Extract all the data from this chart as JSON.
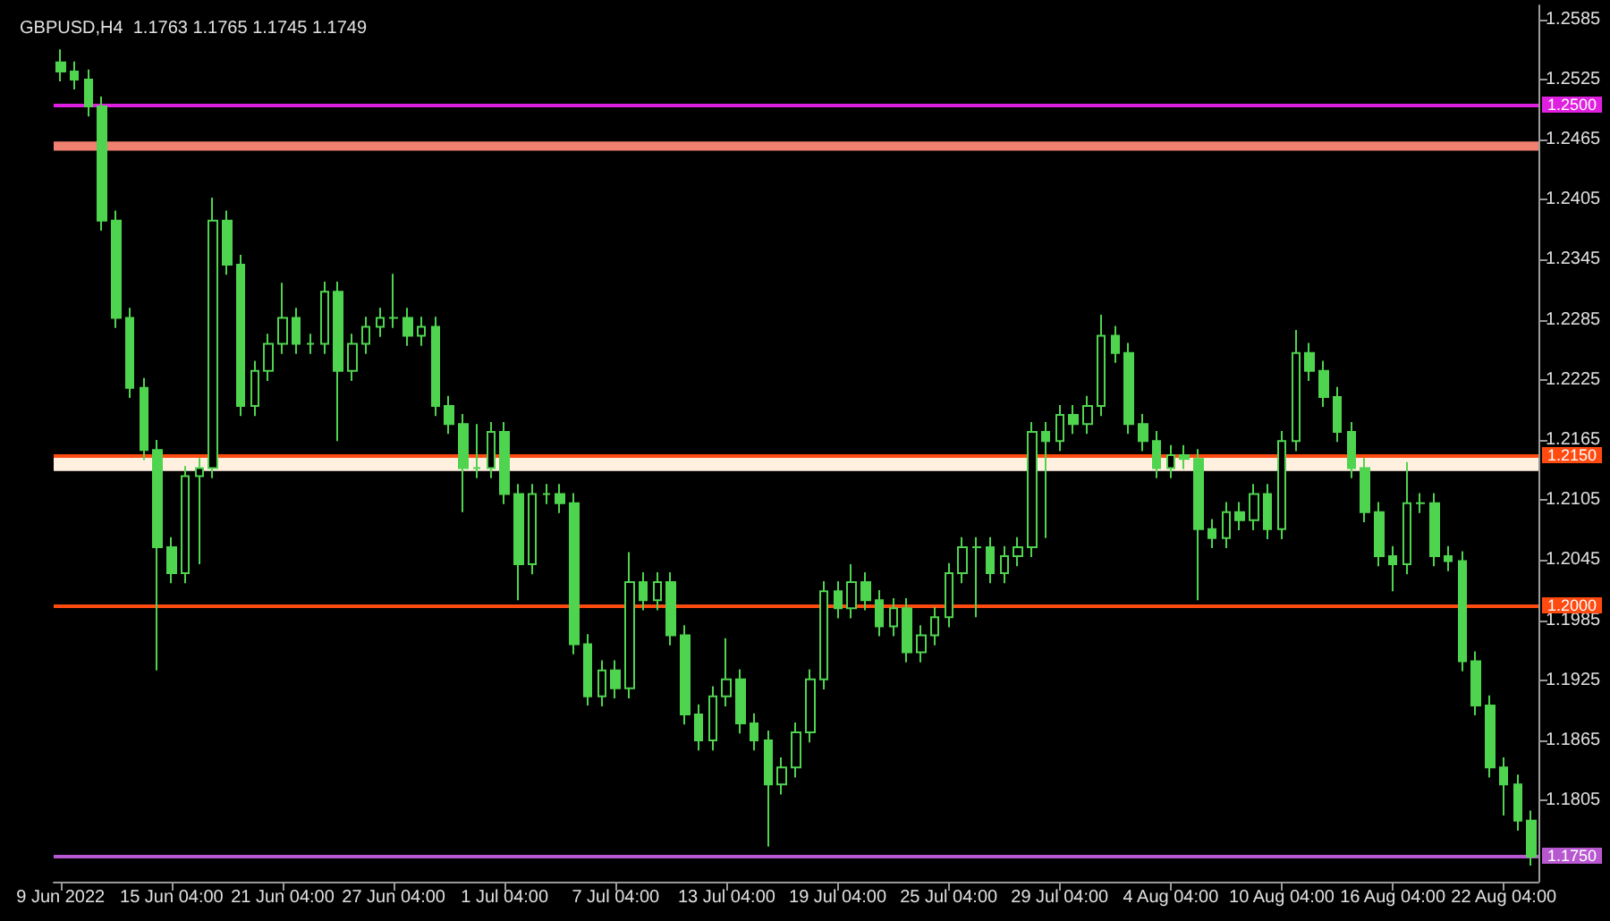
{
  "chart_data": {
    "type": "candlestick",
    "title": "GBPUSD,H4  1.1763 1.1765 1.1745 1.1749",
    "categories": [
      "9 Jun 2022",
      null,
      null,
      null,
      null,
      null,
      null,
      null,
      "15 Jun 04:00",
      null,
      null,
      null,
      null,
      null,
      null,
      null,
      "21 Jun 04:00",
      null,
      null,
      null,
      null,
      null,
      null,
      null,
      "27 Jun 04:00",
      null,
      null,
      null,
      null,
      null,
      null,
      null,
      "1 Jul 04:00",
      null,
      null,
      null,
      null,
      null,
      null,
      null,
      "7 Jul 04:00",
      null,
      null,
      null,
      null,
      null,
      null,
      null,
      "13 Jul 04:00",
      null,
      null,
      null,
      null,
      null,
      null,
      null,
      "19 Jul 04:00",
      null,
      null,
      null,
      null,
      null,
      null,
      null,
      "25 Jul 04:00",
      null,
      null,
      null,
      null,
      null,
      null,
      null,
      "29 Jul 04:00",
      null,
      null,
      null,
      null,
      null,
      null,
      null,
      "4 Aug 04:00",
      null,
      null,
      null,
      null,
      null,
      null,
      null,
      "10 Aug 04:00",
      null,
      null,
      null,
      null,
      null,
      null,
      null,
      "16 Aug 04:00",
      null,
      null,
      null,
      null,
      null,
      null,
      null,
      "22 Aug 04:00",
      null,
      null
    ],
    "ohlc": [
      [
        1.2542,
        1.2555,
        1.2523,
        1.2533
      ],
      [
        1.2533,
        1.2543,
        1.2515,
        1.2525
      ],
      [
        1.2525,
        1.2535,
        1.2488,
        1.2498
      ],
      [
        1.2498,
        1.2508,
        1.2374,
        1.2384
      ],
      [
        1.2384,
        1.2394,
        1.2277,
        1.2287
      ],
      [
        1.2287,
        1.2297,
        1.2207,
        1.2217
      ],
      [
        1.2217,
        1.2227,
        1.2145,
        1.2155
      ],
      [
        1.2155,
        1.2165,
        1.1935,
        1.2058
      ],
      [
        1.2058,
        1.2068,
        1.2022,
        1.2032
      ],
      [
        1.2032,
        1.2139,
        1.2022,
        1.2129
      ],
      [
        1.2129,
        1.2147,
        1.2041,
        1.2137
      ],
      [
        1.2137,
        1.2407,
        1.2127,
        1.2384
      ],
      [
        1.2384,
        1.2394,
        1.233,
        1.234
      ],
      [
        1.234,
        1.235,
        1.2189,
        1.2199
      ],
      [
        1.2199,
        1.2244,
        1.2189,
        1.2234
      ],
      [
        1.2234,
        1.2271,
        1.2224,
        1.2261
      ],
      [
        1.2261,
        1.2322,
        1.2251,
        1.2287
      ],
      [
        1.2287,
        1.2297,
        1.2251,
        1.2261
      ],
      [
        1.2261,
        1.2271,
        1.2251,
        1.2261
      ],
      [
        1.2261,
        1.2323,
        1.2251,
        1.2313
      ],
      [
        1.2313,
        1.2323,
        1.2164,
        1.2234
      ],
      [
        1.2234,
        1.2271,
        1.2224,
        1.2261
      ],
      [
        1.2261,
        1.2288,
        1.2251,
        1.2278
      ],
      [
        1.2278,
        1.2297,
        1.2268,
        1.2287
      ],
      [
        1.2287,
        1.2331,
        1.2277,
        1.2287
      ],
      [
        1.2287,
        1.2297,
        1.2259,
        1.2269
      ],
      [
        1.2269,
        1.2288,
        1.2259,
        1.2278
      ],
      [
        1.2278,
        1.2288,
        1.2189,
        1.2199
      ],
      [
        1.2199,
        1.2209,
        1.2171,
        1.2181
      ],
      [
        1.2181,
        1.2191,
        1.2093,
        1.2137
      ],
      [
        1.2137,
        1.2181,
        1.2127,
        1.2137
      ],
      [
        1.2137,
        1.2183,
        1.2127,
        1.2173
      ],
      [
        1.2173,
        1.2183,
        1.2101,
        1.2111
      ],
      [
        1.2111,
        1.2121,
        1.2005,
        1.2041
      ],
      [
        1.2041,
        1.2121,
        1.2031,
        1.2111
      ],
      [
        1.2111,
        1.2121,
        1.2101,
        1.2111
      ],
      [
        1.2111,
        1.2121,
        1.2092,
        1.2102
      ],
      [
        1.2102,
        1.2112,
        1.1951,
        1.1961
      ],
      [
        1.1961,
        1.1971,
        1.19,
        1.1909
      ],
      [
        1.1909,
        1.1945,
        1.1899,
        1.1935
      ],
      [
        1.1935,
        1.1945,
        1.1907,
        1.1917
      ],
      [
        1.1917,
        1.2053,
        1.1907,
        1.2023
      ],
      [
        1.2023,
        1.2033,
        1.1995,
        1.2005
      ],
      [
        1.2005,
        1.2033,
        1.1995,
        1.2023
      ],
      [
        1.2023,
        1.2033,
        1.196,
        1.197
      ],
      [
        1.197,
        1.198,
        1.1881,
        1.1891
      ],
      [
        1.1891,
        1.1901,
        1.1855,
        1.1865
      ],
      [
        1.1865,
        1.1919,
        1.1855,
        1.1909
      ],
      [
        1.1909,
        1.1967,
        1.1899,
        1.1926
      ],
      [
        1.1926,
        1.1936,
        1.1872,
        1.1882
      ],
      [
        1.1882,
        1.1892,
        1.1855,
        1.1865
      ],
      [
        1.1865,
        1.1875,
        1.1759,
        1.1821
      ],
      [
        1.1821,
        1.1848,
        1.1811,
        1.1838
      ],
      [
        1.1838,
        1.1883,
        1.1828,
        1.1873
      ],
      [
        1.1873,
        1.1936,
        1.1863,
        1.1926
      ],
      [
        1.1926,
        1.2024,
        1.1916,
        1.2014
      ],
      [
        1.2014,
        1.2024,
        1.1987,
        1.1997
      ],
      [
        1.1997,
        1.2041,
        1.1987,
        1.2023
      ],
      [
        1.2023,
        1.2033,
        1.1995,
        1.2005
      ],
      [
        1.2005,
        1.2015,
        1.1969,
        1.1979
      ],
      [
        1.1979,
        1.2007,
        1.1969,
        1.1997
      ],
      [
        1.1997,
        1.2007,
        1.1943,
        1.1953
      ],
      [
        1.1953,
        1.198,
        1.1943,
        1.197
      ],
      [
        1.197,
        1.1998,
        1.196,
        1.1988
      ],
      [
        1.1988,
        1.2042,
        1.1978,
        1.2032
      ],
      [
        1.2032,
        1.2068,
        1.2022,
        1.2058
      ],
      [
        1.2058,
        1.2068,
        1.1988,
        1.2058
      ],
      [
        1.2058,
        1.2068,
        1.2022,
        1.2032
      ],
      [
        1.2032,
        1.2059,
        1.2022,
        1.2049
      ],
      [
        1.2049,
        1.2068,
        1.2039,
        1.2058
      ],
      [
        1.2058,
        1.2183,
        1.2048,
        1.2173
      ],
      [
        1.2173,
        1.2183,
        1.2067,
        1.2164
      ],
      [
        1.2164,
        1.22,
        1.2154,
        1.219
      ],
      [
        1.219,
        1.22,
        1.2171,
        1.2181
      ],
      [
        1.2181,
        1.2209,
        1.2171,
        1.2199
      ],
      [
        1.2199,
        1.229,
        1.2189,
        1.2269
      ],
      [
        1.2269,
        1.2279,
        1.2242,
        1.2252
      ],
      [
        1.2252,
        1.2262,
        1.2171,
        1.2181
      ],
      [
        1.2181,
        1.2191,
        1.2154,
        1.2164
      ],
      [
        1.2164,
        1.2174,
        1.2127,
        1.2137
      ],
      [
        1.2137,
        1.216,
        1.2127,
        1.215
      ],
      [
        1.215,
        1.216,
        1.2136,
        1.2146
      ],
      [
        1.2146,
        1.2156,
        1.2005,
        1.2076
      ],
      [
        1.2076,
        1.2086,
        1.2057,
        1.2067
      ],
      [
        1.2067,
        1.2103,
        1.2057,
        1.2093
      ],
      [
        1.2093,
        1.2103,
        1.2075,
        1.2085
      ],
      [
        1.2085,
        1.2121,
        1.2075,
        1.2111
      ],
      [
        1.2111,
        1.2121,
        1.2066,
        1.2076
      ],
      [
        1.2076,
        1.2174,
        1.2066,
        1.2164
      ],
      [
        1.2164,
        1.2275,
        1.2154,
        1.2252
      ],
      [
        1.2252,
        1.2262,
        1.2224,
        1.2234
      ],
      [
        1.2234,
        1.2244,
        1.2198,
        1.2208
      ],
      [
        1.2208,
        1.2218,
        1.2163,
        1.2173
      ],
      [
        1.2173,
        1.2183,
        1.2127,
        1.2137
      ],
      [
        1.2137,
        1.2147,
        1.2083,
        1.2093
      ],
      [
        1.2093,
        1.2103,
        1.2039,
        1.2049
      ],
      [
        1.2049,
        1.2059,
        1.2014,
        1.2041
      ],
      [
        1.2041,
        1.2143,
        1.2031,
        1.2102
      ],
      [
        1.2102,
        1.2112,
        1.2092,
        1.2102
      ],
      [
        1.2102,
        1.2112,
        1.2039,
        1.2049
      ],
      [
        1.2049,
        1.2059,
        1.2034,
        1.2044
      ],
      [
        1.2044,
        1.2054,
        1.1934,
        1.1944
      ],
      [
        1.1944,
        1.1954,
        1.189,
        1.19
      ],
      [
        1.19,
        1.191,
        1.1828,
        1.1838
      ],
      [
        1.1838,
        1.1848,
        1.179,
        1.1821
      ],
      [
        1.1821,
        1.1831,
        1.1775,
        1.1785
      ],
      [
        1.1785,
        1.1795,
        1.174,
        1.1749
      ]
    ],
    "color": "#4fd44f",
    "ylim": [
      1.1724,
      1.2599
    ],
    "yticks": [
      1.1805,
      1.1865,
      1.1925,
      1.1985,
      1.2045,
      1.2105,
      1.2165,
      1.2225,
      1.2285,
      1.2345,
      1.2405,
      1.2465,
      1.2525,
      1.2585
    ],
    "ref_lines": [
      {
        "axis": "y",
        "value": 1.25,
        "label": "1.2500",
        "color": "#e020e0"
      },
      {
        "axis": "y",
        "value": 1.215,
        "label": "1.2150",
        "color": "#ff4a10"
      },
      {
        "axis": "y",
        "value": 1.2,
        "label": "1.2000",
        "color": "#ff4a10"
      },
      {
        "axis": "y",
        "value": 1.175,
        "label": "1.1750",
        "color": "#b858d0"
      }
    ],
    "bands": [
      {
        "axis": "y",
        "from": 1.2134,
        "to": 1.215,
        "color": "#fff0e0"
      },
      {
        "axis": "y",
        "from": 1.2454,
        "to": 1.2463,
        "color": "#f08070"
      }
    ],
    "grid": false
  }
}
